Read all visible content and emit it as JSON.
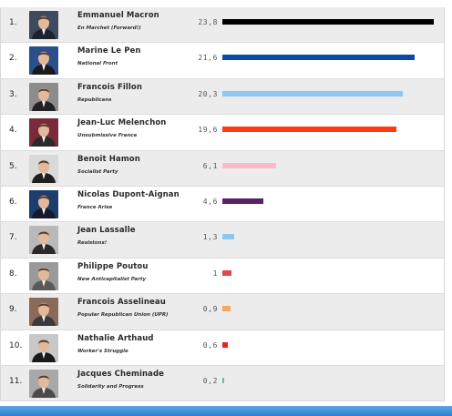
{
  "chart_data": {
    "type": "bar",
    "orientation": "horizontal",
    "categories": [
      "Emmanuel Macron",
      "Marine Le Pen",
      "Francois Fillon",
      "Jean-Luc Melenchon",
      "Benoit Hamon",
      "Nicolas Dupont-Aignan",
      "Jean Lassalle",
      "Philippe Poutou",
      "Francois Asselineau",
      "Nathalie Arthaud",
      "Jacques Cheminade"
    ],
    "values": [
      23.8,
      21.6,
      20.3,
      19.6,
      6.1,
      4.6,
      1.3,
      1,
      0.9,
      0.6,
      0.2
    ],
    "xlim": [
      0,
      23.8
    ],
    "title": "",
    "xlabel": "",
    "ylabel": "",
    "grid": false,
    "legend": "none"
  },
  "rows": [
    {
      "rank": "1.",
      "name": "Emmanuel Macron",
      "party": "En Marchet (Forward!)",
      "value_label": "23,8",
      "color": "#000000",
      "photo_bg": "#3e4a5e",
      "suit": "#1c2230"
    },
    {
      "rank": "2.",
      "name": "Marine Le Pen",
      "party": "National Front",
      "value_label": "21,6",
      "color": "#0a4ba8",
      "photo_bg": "#2b4f8a",
      "suit": "#1a1a1a"
    },
    {
      "rank": "3.",
      "name": "Francois Fillon",
      "party": "Republicans",
      "value_label": "20,3",
      "color": "#8ec8f2",
      "photo_bg": "#8c8c8c",
      "suit": "#222222"
    },
    {
      "rank": "4.",
      "name": "Jean-Luc Melenchon",
      "party": "Unsubmissive France",
      "value_label": "19,6",
      "color": "#ff3a12",
      "photo_bg": "#7a2a3a",
      "suit": "#2a2a2a"
    },
    {
      "rank": "5.",
      "name": "Benoit Hamon",
      "party": "Socialist Party",
      "value_label": "6,1",
      "color": "#f7bcc8",
      "photo_bg": "#d9d9d9",
      "suit": "#1f1f1f"
    },
    {
      "rank": "6.",
      "name": "Nicolas Dupont-Aignan",
      "party": "France Arise",
      "value_label": "4,6",
      "color": "#5a2168",
      "photo_bg": "#1d3d6e",
      "suit": "#151a2a"
    },
    {
      "rank": "7.",
      "name": "Jean Lassalle",
      "party": "Resistons!",
      "value_label": "1,3",
      "color": "#8ec8f2",
      "photo_bg": "#b9b9b9",
      "suit": "#2a2a2a"
    },
    {
      "rank": "8.",
      "name": "Philippe Poutou",
      "party": "New Anticapitalist Party",
      "value_label": "1",
      "color": "#e0474c",
      "photo_bg": "#9a9a9a",
      "suit": "#5a5a5a"
    },
    {
      "rank": "9.",
      "name": "Francois Asselineau",
      "party": "Popular Republican Union (UPR)",
      "value_label": "0,9",
      "color": "#f5a95e",
      "photo_bg": "#8a6a5a",
      "suit": "#3a3a3a"
    },
    {
      "rank": "10.",
      "name": "Nathalie Arthaud",
      "party": "Worker's Struggle",
      "value_label": "0,6",
      "color": "#e82020",
      "photo_bg": "#c8c8c8",
      "suit": "#1a1a1a"
    },
    {
      "rank": "11.",
      "name": "Jacques Cheminade",
      "party": "Solidarity and Progress",
      "value_label": "0,2",
      "color": "#7fae9a",
      "photo_bg": "#a8a8a8",
      "suit": "#4a4a4a"
    }
  ]
}
